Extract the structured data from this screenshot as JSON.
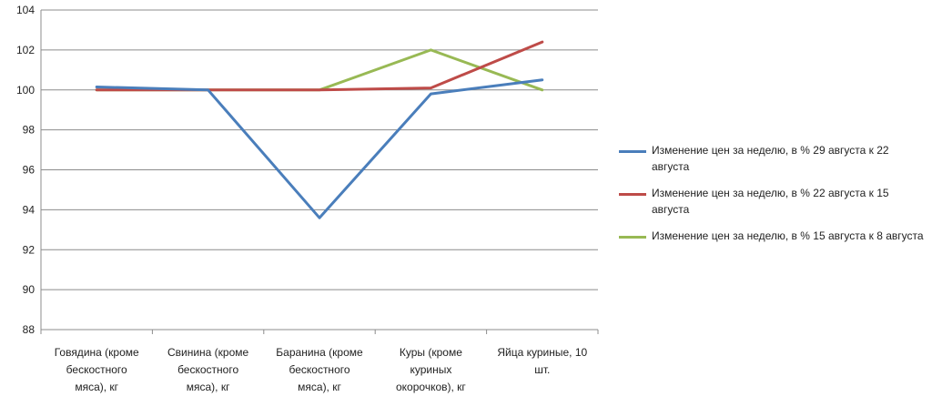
{
  "chart_data": {
    "type": "line",
    "categories": [
      "Говядина (кроме бескостного мяса), кг",
      "Свинина (кроме бескостного мяса), кг",
      "Баранина (кроме бескостного мяса), кг",
      "Куры (кроме куриных окорочков), кг",
      "Яйца куриные, 10 шт."
    ],
    "category_lines": [
      [
        "Говядина (кроме",
        "бескостного",
        "мяса), кг"
      ],
      [
        "Свинина (кроме",
        "бескостного",
        "мяса), кг"
      ],
      [
        "Баранина (кроме",
        "бескостного",
        "мяса), кг"
      ],
      [
        "Куры (кроме",
        "куриных",
        "окорочков), кг"
      ],
      [
        "Яйца куриные, 10",
        "шт."
      ]
    ],
    "series": [
      {
        "name": "Изменение цен за неделю, в % 29 августа  к  22 августа",
        "color": "#4a7ebb",
        "values": [
          100.15,
          100.0,
          93.6,
          99.8,
          100.5
        ]
      },
      {
        "name": "Изменение цен за неделю, в % 22 августа  к 15 августа",
        "color": "#be4b48",
        "values": [
          100.0,
          100.0,
          100.0,
          100.1,
          102.4
        ]
      },
      {
        "name": "Изменение цен за неделю, в % 15 августа к 8 августа",
        "color": "#98b954",
        "values": [
          100.0,
          100.0,
          100.0,
          102.0,
          100.0
        ]
      }
    ],
    "title": "",
    "xlabel": "",
    "ylabel": "",
    "ylim": [
      88,
      104
    ],
    "yticks": [
      "88",
      "90",
      "92",
      "94",
      "96",
      "98",
      "100",
      "102",
      "104"
    ],
    "grid": true,
    "legend_position": "right"
  }
}
